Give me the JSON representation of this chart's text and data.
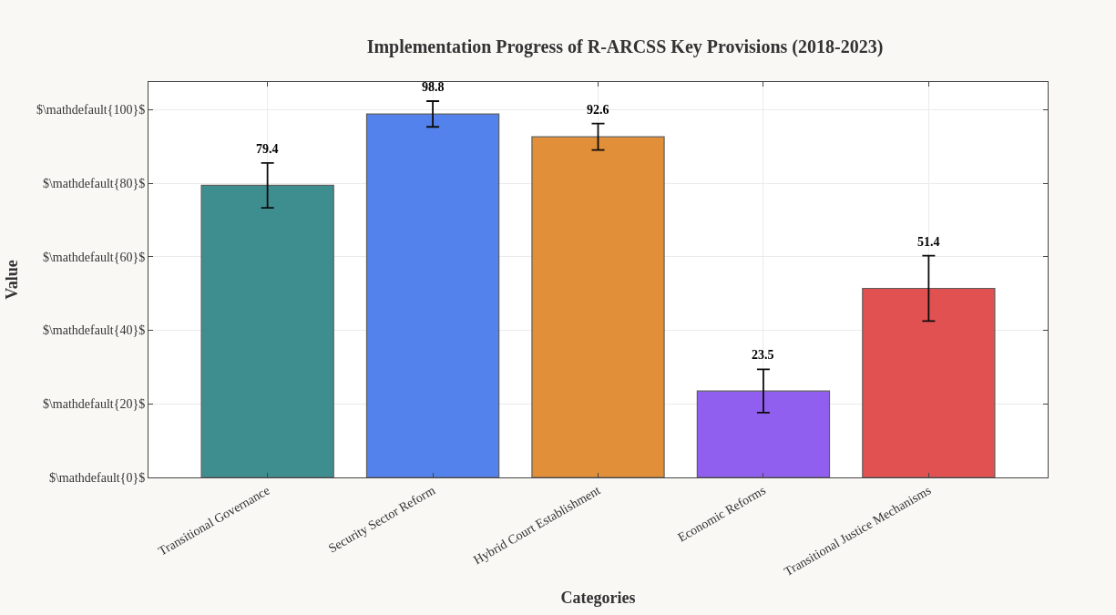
{
  "chart_data": {
    "type": "bar",
    "title": "Implementation Progress of R-ARCSS Key Provisions (2018-2023)",
    "xlabel": "Categories",
    "ylabel": "Value",
    "categories": [
      "Transitional Governance",
      "Security Sector Reform",
      "Hybrid Court Establishment",
      "Economic Reforms",
      "Transitional Justice Mechanisms"
    ],
    "values": [
      79.4,
      98.8,
      92.6,
      23.5,
      51.4
    ],
    "colors": [
      "#34898a",
      "#4a7cec",
      "#e08a2e",
      "#8b57ef",
      "#e04848"
    ],
    "errors": [
      6.1,
      3.5,
      3.6,
      5.9,
      8.9
    ],
    "data_labels": true,
    "ylim": [
      0,
      107.5
    ],
    "yticks": [
      {
        "value": 0,
        "label": "$\\mathdefault{0}$"
      },
      {
        "value": 20,
        "label": "$\\mathdefault{20}$"
      },
      {
        "value": 40,
        "label": "$\\mathdefault{40}$"
      },
      {
        "value": 60,
        "label": "$\\mathdefault{60}$"
      },
      {
        "value": 80,
        "label": "$\\mathdefault{80}$"
      },
      {
        "value": 100,
        "label": "$\\mathdefault{100}$"
      }
    ],
    "grid": true
  }
}
